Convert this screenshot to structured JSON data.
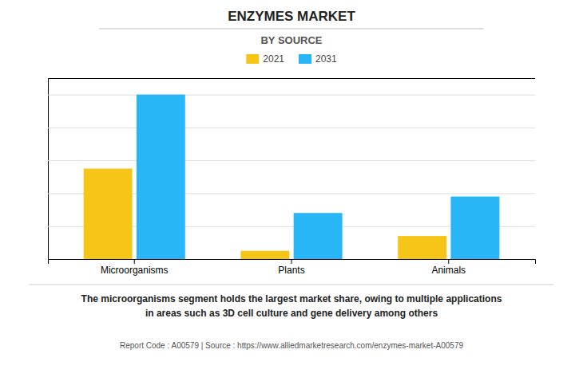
{
  "chart_data": {
    "type": "bar",
    "title": "ENZYMES MARKET",
    "subtitle": "BY SOURCE",
    "categories": [
      "Microorganisms",
      "Plants",
      "Animals"
    ],
    "series": [
      {
        "name": "2021",
        "color": "#F5C518",
        "values": [
          55,
          5,
          14
        ]
      },
      {
        "name": "2031",
        "color": "#29B6F6",
        "values": [
          100,
          28,
          38
        ]
      }
    ],
    "ylim": [
      0,
      110
    ],
    "yticks": [
      0,
      20,
      40,
      60,
      80,
      100
    ],
    "grid": true,
    "tick_labels": "x",
    "legend": "top",
    "annotations": [
      "The microorganisms segment holds the largest market share, owing to multiple applications\nin areas such as 3D cell culture and gene delivery among others",
      "Report Code : A00579  |  Source : https://www.alliedmarketresearch.com/enzymes-market-A00579"
    ]
  }
}
